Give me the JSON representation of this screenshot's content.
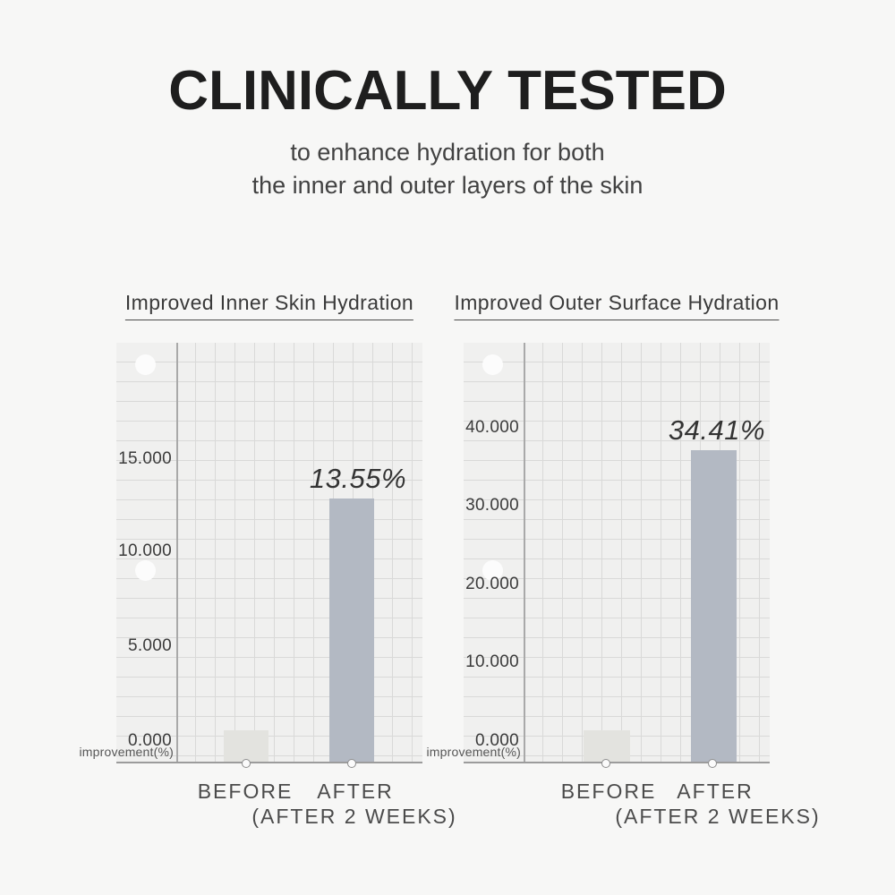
{
  "header": {
    "title": "CLINICALLY TESTED",
    "subtitle_line1": "to enhance hydration for both",
    "subtitle_line2": "the inner and outer layers of the skin"
  },
  "chart_data": [
    {
      "type": "bar",
      "title": "Improved Inner Skin Hydration",
      "categories": [
        "BEFORE",
        "AFTER"
      ],
      "values": [
        1.6,
        13.55
      ],
      "bar_labels": [
        "",
        "13.55%"
      ],
      "xnote": "(AFTER 2 WEEKS)",
      "ylabel": "improvement(%)",
      "yticks": [
        "15.000",
        "10.000",
        "5.000",
        "0.000"
      ],
      "ylim": [
        0,
        20
      ],
      "grid": true,
      "legend": "none"
    },
    {
      "type": "bar",
      "title": "Improved Outer Surface Hydration",
      "categories": [
        "BEFORE",
        "AFTER"
      ],
      "values": [
        3.5,
        34.41
      ],
      "bar_labels": [
        "",
        "34.41%"
      ],
      "xnote": "(AFTER 2 WEEKS)",
      "ylabel": "improvement(%)",
      "yticks": [
        "40.000",
        "30.000",
        "20.000",
        "10.000",
        "0.000"
      ],
      "ylim": [
        0,
        46
      ],
      "grid": true,
      "legend": "none"
    }
  ],
  "colors": {
    "page_bg": "#f7f7f6",
    "paper_bg": "#f0f0ef",
    "grid_line": "#d9d9d8",
    "before_bar": "#e3e3df",
    "after_bar": "#b3b9c3",
    "title_text": "#1e1e1e"
  }
}
